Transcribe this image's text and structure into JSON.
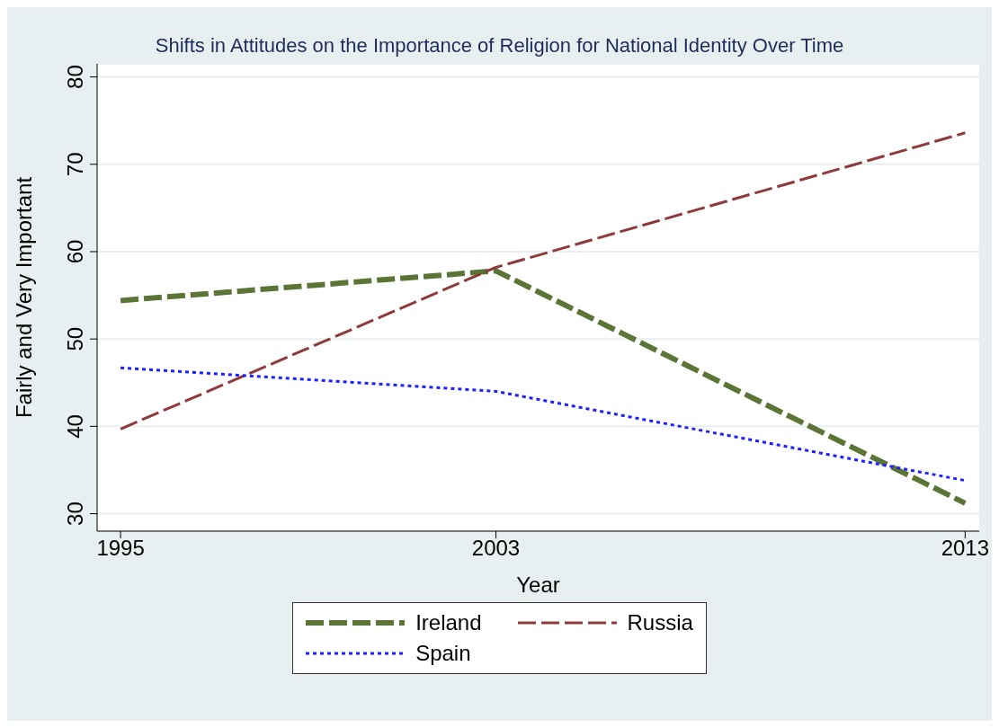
{
  "chart_data": {
    "type": "line",
    "title": "Shifts in Attitudes on the Importance of Religion for National Identity Over Time",
    "xlabel": "Year",
    "ylabel": "Fairly and Very Important",
    "x": [
      1995,
      2003,
      2013
    ],
    "series": [
      {
        "name": "Ireland",
        "color": "#5a7536",
        "values": [
          54.4,
          57.8,
          31.2
        ],
        "line_style": "dashed"
      },
      {
        "name": "Russia",
        "color": "#8f3a3a",
        "values": [
          39.7,
          58.2,
          73.6
        ],
        "line_style": "dashed"
      },
      {
        "name": "Spain",
        "color": "#1f1fff",
        "values": [
          46.7,
          44.0,
          33.8
        ],
        "line_style": "dotted"
      }
    ],
    "xlim": [
      1994.5,
      2013.3
    ],
    "xticks": [
      1995,
      2003,
      2013
    ],
    "ylim": [
      28,
      81.5
    ],
    "yticks": [
      30,
      40,
      50,
      60,
      70,
      80
    ],
    "grid": "y",
    "legend": "bottom",
    "marker": "none"
  }
}
